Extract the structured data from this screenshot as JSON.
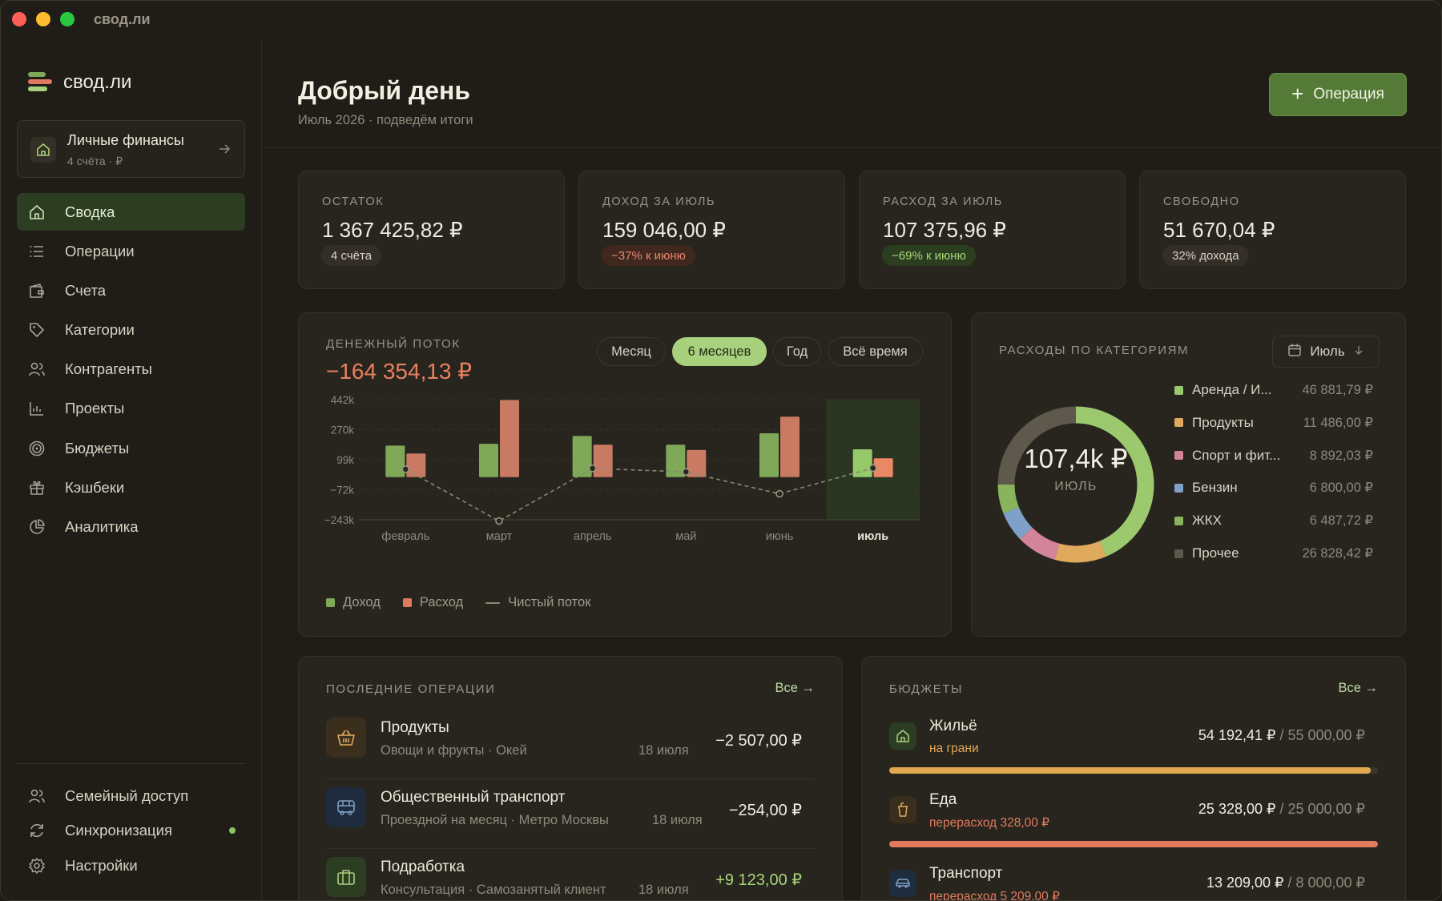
{
  "window": {
    "title": "свод.ли"
  },
  "sidebar": {
    "brand": "свод.ли",
    "workspace": {
      "title": "Личные финансы",
      "subtitle": "4 счёта · ₽"
    },
    "items": [
      {
        "label": "Сводка",
        "icon": "home-icon",
        "active": true
      },
      {
        "label": "Операции",
        "icon": "list-icon"
      },
      {
        "label": "Счета",
        "icon": "wallet-icon"
      },
      {
        "label": "Категории",
        "icon": "tag-icon"
      },
      {
        "label": "Контрагенты",
        "icon": "users-icon"
      },
      {
        "label": "Проекты",
        "icon": "chart-icon"
      },
      {
        "label": "Бюджеты",
        "icon": "target-icon"
      },
      {
        "label": "Кэшбеки",
        "icon": "gift-icon"
      },
      {
        "label": "Аналитика",
        "icon": "pie-icon"
      }
    ],
    "bottom": [
      {
        "label": "Семейный доступ",
        "icon": "users-icon"
      },
      {
        "label": "Синхронизация",
        "icon": "sync-icon"
      },
      {
        "label": "Настройки",
        "icon": "gear-icon"
      }
    ]
  },
  "header": {
    "title": "Добрый день",
    "subtitle": "Июль 2026 · подведём итоги",
    "add_button": "Операция"
  },
  "stats": [
    {
      "label": "ОСТАТОК",
      "value": "1 367 425,82 ₽",
      "note": "4 счёта",
      "tone": "neutral"
    },
    {
      "label": "ДОХОД ЗА ИЮЛЬ",
      "value": "159 046,00 ₽",
      "note": "−37% к июню",
      "tone": "red"
    },
    {
      "label": "РАСХОД ЗА ИЮЛЬ",
      "value": "107 375,96 ₽",
      "note": "−69% к июню",
      "tone": "green"
    },
    {
      "label": "СВОБОДНО",
      "value": "51 670,04 ₽",
      "note": "32% дохода",
      "tone": "neutral"
    }
  ],
  "cashflow": {
    "label": "ДЕНЕЖНЫЙ ПОТОК",
    "total": "−164 354,13 ₽",
    "periods": [
      "Месяц",
      "6 месяцев",
      "Год",
      "Всё время"
    ],
    "active_period": "6 месяцев",
    "legend": {
      "income": "Доход",
      "expense": "Расход",
      "net": "Чистый поток"
    }
  },
  "chart_data": {
    "type": "bar",
    "categories": [
      "февраль",
      "март",
      "апрель",
      "май",
      "июнь",
      "июль"
    ],
    "highlight": "июль",
    "y_ticks": [
      "442k",
      "270k",
      "99k",
      "−72k",
      "−243k"
    ],
    "y_tick_values": [
      442000,
      270000,
      99000,
      -72000,
      -243000
    ],
    "ylim": [
      -243000,
      442000
    ],
    "series": [
      {
        "name": "Доход",
        "type": "bar",
        "color": "#7fa859",
        "values": [
          180000,
          190000,
          235000,
          185000,
          250000,
          159046
        ]
      },
      {
        "name": "Расход",
        "type": "bar",
        "color": "#c97a62",
        "values": [
          135000,
          440000,
          185000,
          155000,
          345000,
          107376
        ]
      },
      {
        "name": "Чистый поток",
        "type": "line",
        "color": "#8a8a72",
        "values": [
          45000,
          -250000,
          50000,
          30000,
          -95000,
          51670
        ]
      }
    ],
    "grid": true,
    "legend_position": "bottom-left"
  },
  "categories": {
    "label": "РАСХОДЫ ПО КАТЕГОРИЯМ",
    "month": "Июль",
    "total": "107,4k ₽",
    "total_sub": "ИЮЛЬ",
    "items": [
      {
        "name": "Аренда / И...",
        "amount": "46 881,79 ₽",
        "value": 46881.79,
        "color": "#9cc96e"
      },
      {
        "name": "Продукты",
        "amount": "11 486,00 ₽",
        "value": 11486.0,
        "color": "#e0aa5e"
      },
      {
        "name": "Спорт и фит...",
        "amount": "8 892,03 ₽",
        "value": 8892.03,
        "color": "#d4849a"
      },
      {
        "name": "Бензин",
        "amount": "6 800,00 ₽",
        "value": 6800.0,
        "color": "#7fa1c9"
      },
      {
        "name": "ЖКХ",
        "amount": "6 487,72 ₽",
        "value": 6487.72,
        "color": "#88b45e"
      },
      {
        "name": "Прочее",
        "amount": "26 828,42 ₽",
        "value": 26828.42,
        "color": "#5e584d"
      }
    ]
  },
  "operations": {
    "label": "ПОСЛЕДНИЕ ОПЕРАЦИИ",
    "all_link": "Все →",
    "items": [
      {
        "title": "Продукты",
        "subtitle": "Овощи и фрукты · Окей",
        "date": "18 июля",
        "amount": "−2 507,00 ₽",
        "icon": "basket-icon",
        "positive": false
      },
      {
        "title": "Общественный транспорт",
        "subtitle": "Проездной на месяц · Метро Москвы",
        "date": "18 июля",
        "amount": "−254,00 ₽",
        "icon": "bus-icon",
        "positive": false
      },
      {
        "title": "Подработка",
        "subtitle": "Консультация · Самозанятый клиент",
        "date": "18 июля",
        "amount": "+9 123,00 ₽",
        "icon": "briefcase-icon",
        "positive": true
      }
    ]
  },
  "budgets": {
    "label": "БЮДЖЕТЫ",
    "all_link": "Все →",
    "items": [
      {
        "title": "Жильё",
        "status": "на грани",
        "spent": "54 192,41 ₽",
        "limit": " / 55 000,00 ₽",
        "progress": 0.985,
        "bar_color": "#e3a94f",
        "status_color": "#e3a94f",
        "icon": "home-icon"
      },
      {
        "title": "Еда",
        "status": "перерасход 328,00 ₽",
        "spent": "25 328,00 ₽",
        "limit": " / 25 000,00 ₽",
        "progress": 1.0,
        "bar_color": "#e27a5d",
        "status_color": "#e27a5d",
        "icon": "cup-icon"
      },
      {
        "title": "Транспорт",
        "status": "перерасход 5 209,00 ₽",
        "spent": "13 209,00 ₽",
        "limit": " / 8 000,00 ₽",
        "progress": 1.0,
        "bar_color": "#e27a5d",
        "status_color": "#e27a5d",
        "icon": "car-icon"
      }
    ]
  }
}
